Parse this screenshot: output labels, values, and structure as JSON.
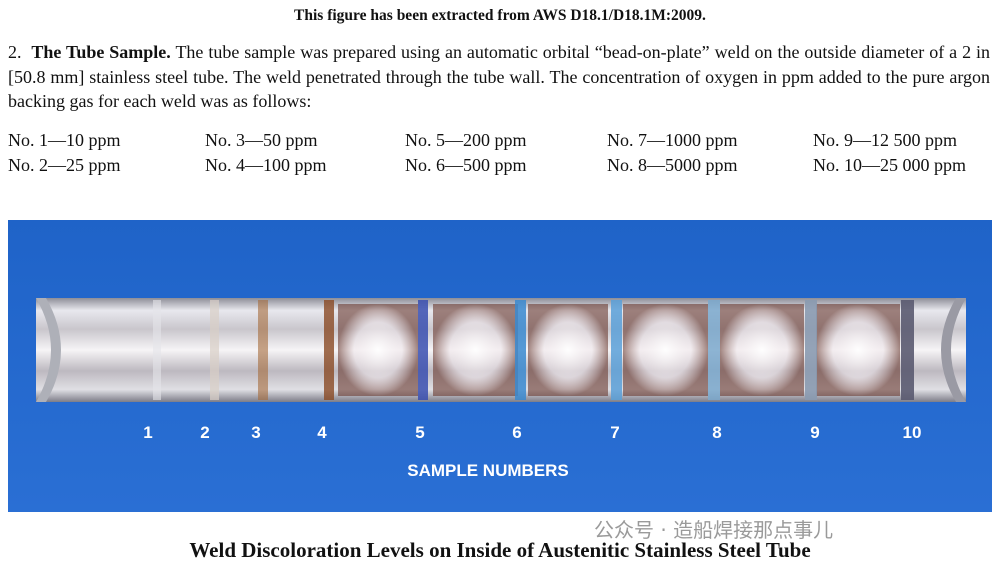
{
  "header": {
    "title": "This figure has been extracted from AWS D18.1/D18.1M:2009."
  },
  "paragraph": {
    "number": "2.",
    "lead": "The Tube Sample.",
    "text": "The tube sample was prepared using an automatic orbital “bead-on-plate” weld on the outside diameter of a 2 in [50.8 mm] stainless steel tube. The weld penetrated through the tube wall. The concentration of oxygen in ppm added to the pure argon backing gas for each weld was as follows:"
  },
  "list": {
    "items": [
      "No. 1—10 ppm",
      "No. 2—25 ppm",
      "No. 3—50 ppm",
      "No. 4—100 ppm",
      "No. 5—200 ppm",
      "No. 6—500 ppm",
      "No. 7—1000 ppm",
      "No. 8—5000 ppm",
      "No. 9—12 500 ppm",
      "No. 10—25 000 ppm"
    ]
  },
  "photo": {
    "sample_labels": [
      "1",
      "2",
      "3",
      "4",
      "5",
      "6",
      "7",
      "8",
      "9",
      "10"
    ],
    "axis_label": "SAMPLE NUMBERS"
  },
  "watermark": "公众号 · 造船焊接那点事儿",
  "caption": "Weld Discoloration Levels on Inside of Austenitic Stainless Steel Tube"
}
